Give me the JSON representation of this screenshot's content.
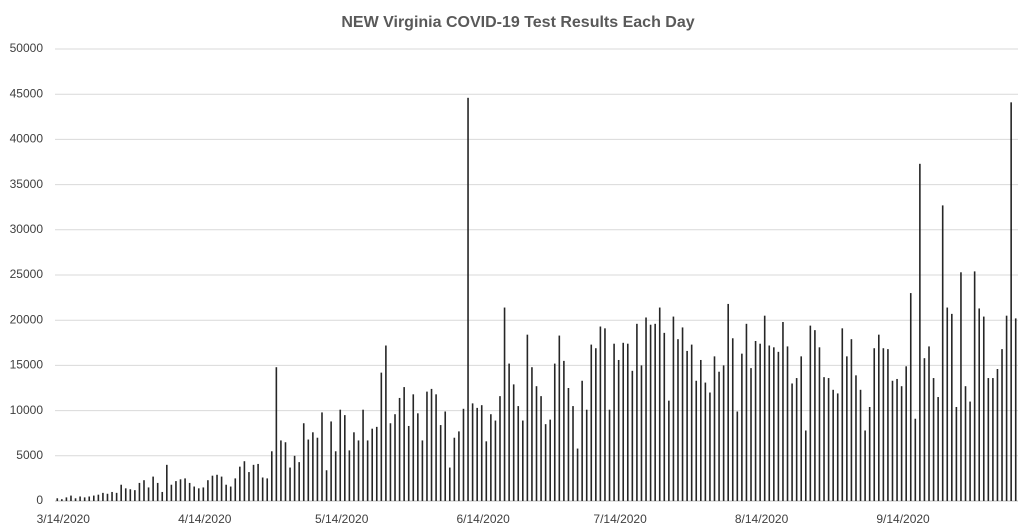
{
  "chart_data": {
    "type": "bar",
    "title": "NEW Virginia COVID-19 Test Results Each Day",
    "categories": [
      "3/14/2020",
      null,
      null,
      null,
      null,
      null,
      null,
      null,
      null,
      null,
      null,
      null,
      null,
      null,
      null,
      null,
      null,
      null,
      null,
      null,
      null,
      null,
      null,
      null,
      null,
      null,
      null,
      null,
      null,
      null,
      null,
      "4/14/2020",
      null,
      null,
      null,
      null,
      null,
      null,
      null,
      null,
      null,
      null,
      null,
      null,
      null,
      null,
      null,
      null,
      null,
      null,
      null,
      null,
      null,
      null,
      null,
      null,
      null,
      null,
      null,
      null,
      null,
      "5/14/2020",
      null,
      null,
      null,
      null,
      null,
      null,
      null,
      null,
      null,
      null,
      null,
      null,
      null,
      null,
      null,
      null,
      null,
      null,
      null,
      null,
      null,
      null,
      null,
      null,
      null,
      null,
      null,
      null,
      null,
      null,
      "6/14/2020",
      null,
      null,
      null,
      null,
      null,
      null,
      null,
      null,
      null,
      null,
      null,
      null,
      null,
      null,
      null,
      null,
      null,
      null,
      null,
      null,
      null,
      null,
      null,
      null,
      null,
      null,
      null,
      null,
      null,
      "7/14/2020",
      null,
      null,
      null,
      null,
      null,
      null,
      null,
      null,
      null,
      null,
      null,
      null,
      null,
      null,
      null,
      null,
      null,
      null,
      null,
      null,
      null,
      null,
      null,
      null,
      null,
      null,
      null,
      null,
      null,
      null,
      "8/14/2020",
      null,
      null,
      null,
      null,
      null,
      null,
      null,
      null,
      null,
      null,
      null,
      null,
      null,
      null,
      null,
      null,
      null,
      null,
      null,
      null,
      null,
      null,
      null,
      null,
      null,
      null,
      null,
      null,
      null,
      null,
      "9/14/2020",
      null,
      null,
      null,
      null,
      null,
      null,
      null,
      null,
      null,
      null,
      null,
      null,
      null,
      null,
      null,
      null,
      null,
      null,
      null,
      null,
      null,
      null,
      null,
      null,
      null,
      null
    ],
    "values": [
      300,
      200,
      400,
      600,
      300,
      500,
      400,
      500,
      600,
      700,
      900,
      800,
      1000,
      900,
      1800,
      1400,
      1300,
      1200,
      2000,
      2300,
      1500,
      2700,
      2000,
      1000,
      4000,
      1800,
      2200,
      2400,
      2500,
      2000,
      1600,
      1400,
      1500,
      2300,
      2800,
      2900,
      2700,
      1800,
      1600,
      2500,
      3800,
      4400,
      3200,
      4000,
      4100,
      2600,
      2500,
      5500,
      14800,
      6700,
      6500,
      3700,
      5000,
      4300,
      8600,
      6800,
      7600,
      7000,
      9800,
      3400,
      8800,
      5500,
      10100,
      9500,
      5600,
      7600,
      6700,
      10100,
      6700,
      8000,
      8200,
      14200,
      17200,
      8600,
      9600,
      11400,
      12600,
      8300,
      11800,
      9700,
      6700,
      12100,
      12400,
      11800,
      8400,
      9900,
      3700,
      7000,
      7700,
      10200,
      44600,
      10800,
      10300,
      10600,
      6600,
      9600,
      8900,
      11600,
      21400,
      15200,
      12900,
      10500,
      8900,
      18400,
      14800,
      12700,
      11600,
      8500,
      9000,
      15200,
      18300,
      15500,
      12500,
      10500,
      5800,
      13300,
      10100,
      17300,
      16900,
      19300,
      19100,
      10100,
      17400,
      15600,
      17500,
      17400,
      14400,
      19600,
      15000,
      20300,
      19500,
      19600,
      21400,
      18600,
      11100,
      20400,
      17900,
      19200,
      16600,
      17300,
      13300,
      15600,
      13100,
      12000,
      16000,
      14300,
      15000,
      21800,
      18000,
      9900,
      16300,
      19600,
      14700,
      17700,
      17400,
      20500,
      17200,
      17000,
      16500,
      19800,
      17100,
      13000,
      13600,
      16000,
      7800,
      19400,
      18900,
      17000,
      13700,
      13600,
      12300,
      11900,
      19100,
      16000,
      17900,
      13900,
      12300,
      7800,
      10400,
      16900,
      18400,
      16900,
      16800,
      13300,
      13500,
      12700,
      14900,
      23000,
      9100,
      37300,
      15800,
      17100,
      13600,
      11500,
      32700,
      21400,
      20700,
      10400,
      25300,
      12700,
      11000,
      25400,
      21300,
      20400,
      13600,
      13600,
      14600,
      16800,
      20500,
      44100,
      20200
    ],
    "color": "#262626",
    "ylim": [
      0,
      50000
    ],
    "yticks": [
      0,
      5000,
      10000,
      15000,
      20000,
      25000,
      30000,
      35000,
      40000,
      45000,
      50000
    ],
    "grid": true
  }
}
